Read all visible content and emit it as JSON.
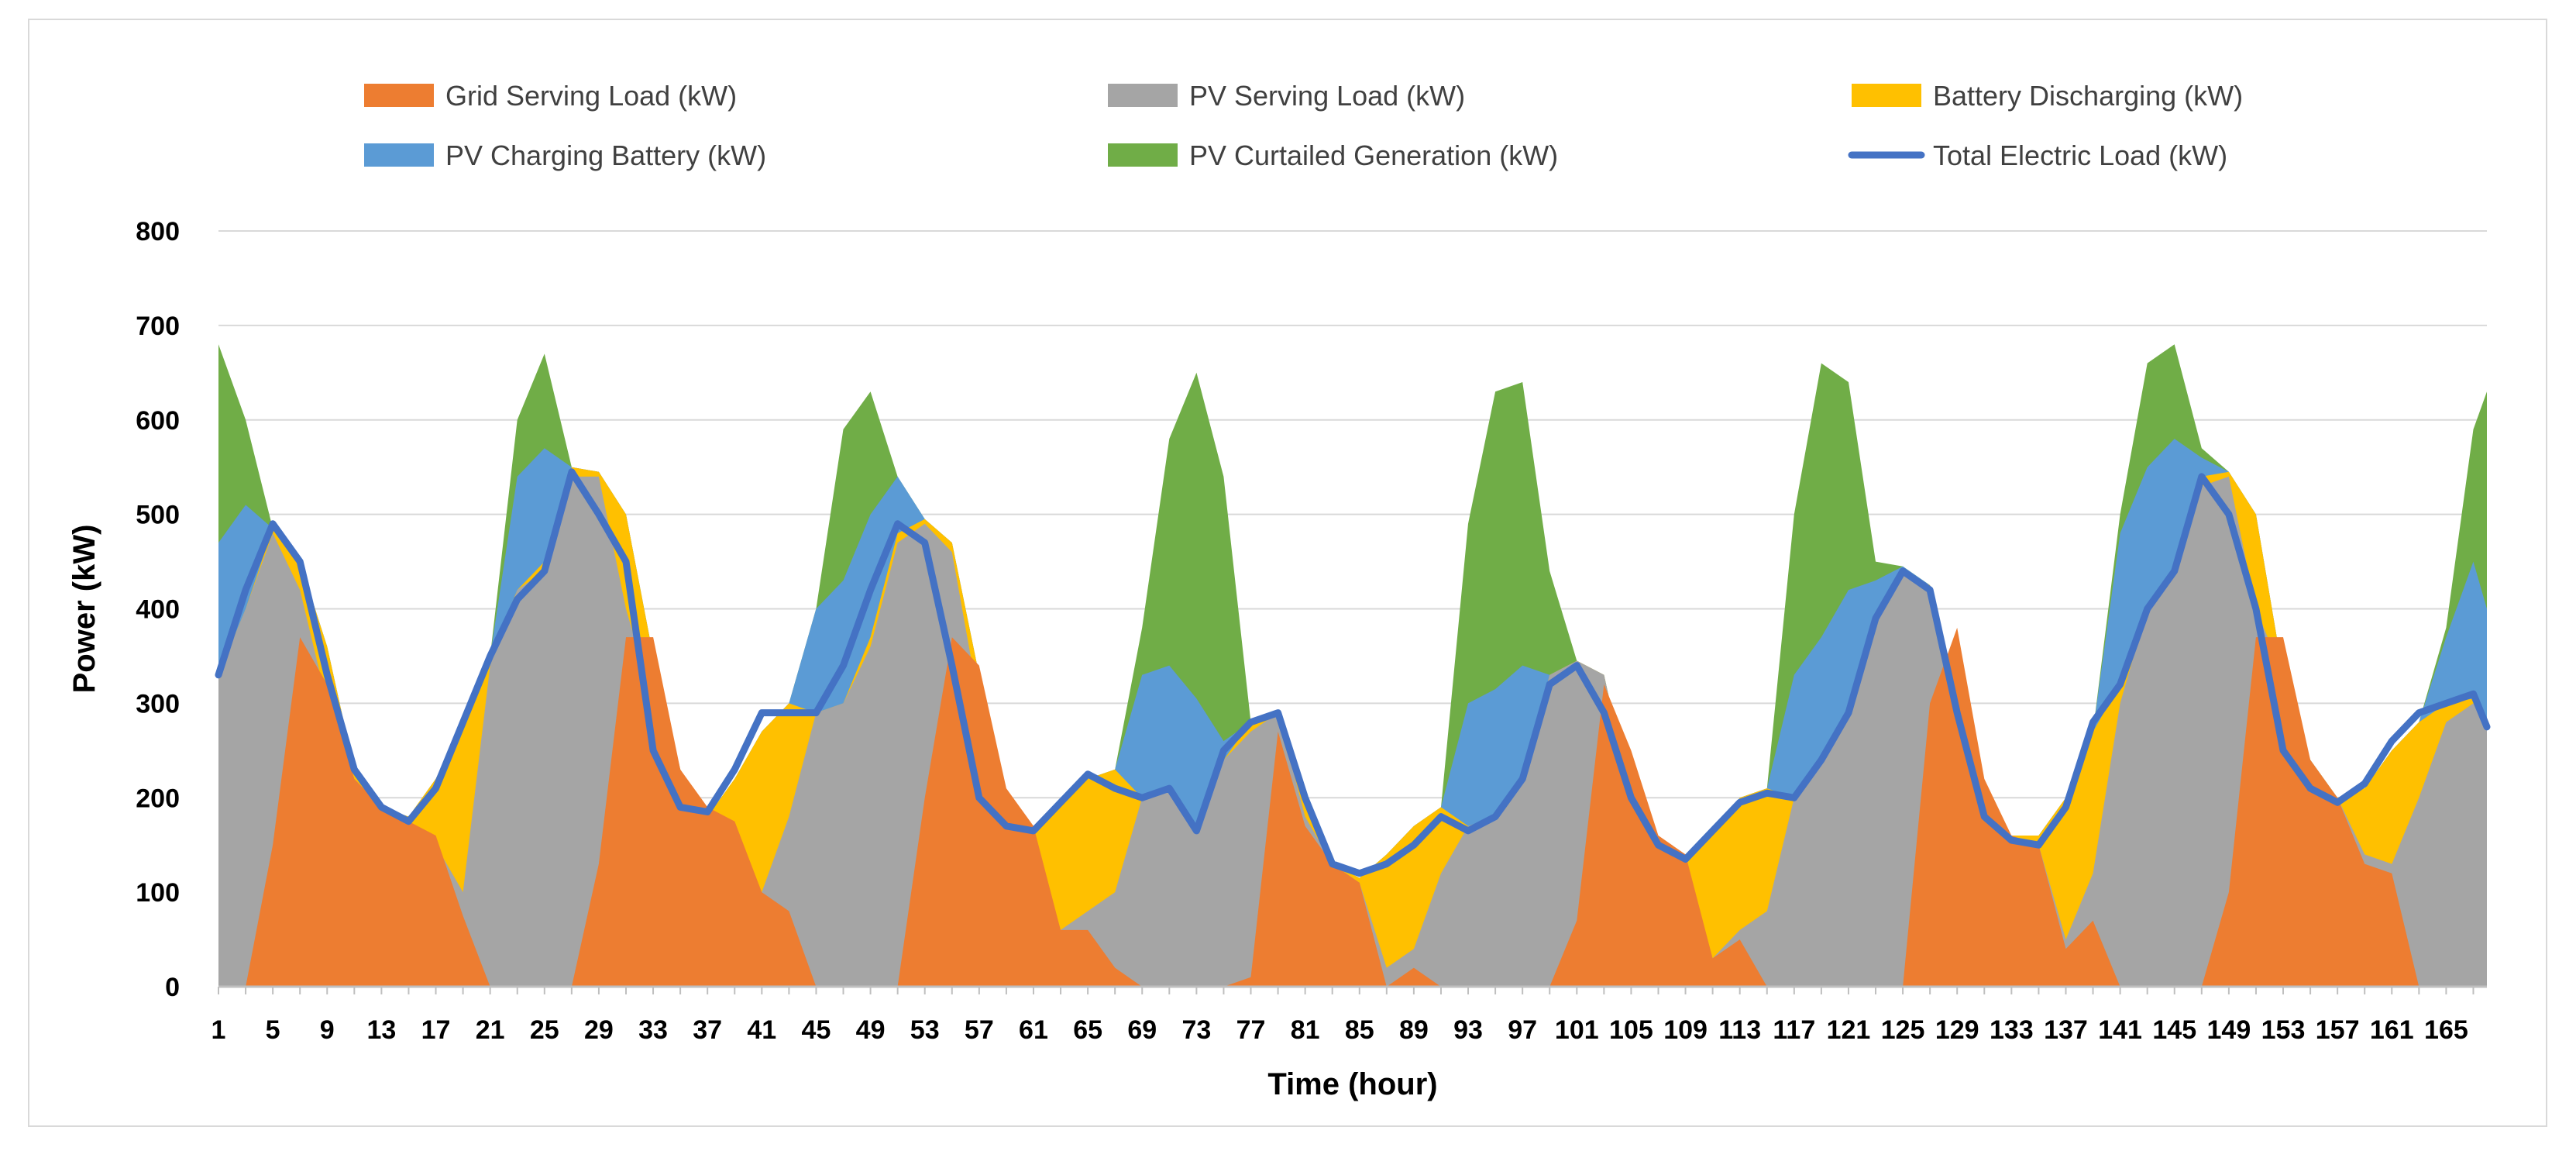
{
  "chart_data": {
    "type": "area",
    "xlabel": "Time (hour)",
    "ylabel": "Power (kW)",
    "ylim": [
      0,
      800
    ],
    "yticks": [
      0,
      100,
      200,
      300,
      400,
      500,
      600,
      700,
      800
    ],
    "xticks": [
      1,
      5,
      9,
      13,
      17,
      21,
      25,
      29,
      33,
      37,
      41,
      45,
      49,
      53,
      57,
      61,
      65,
      69,
      73,
      77,
      81,
      85,
      89,
      93,
      97,
      101,
      105,
      109,
      113,
      117,
      121,
      125,
      129,
      133,
      137,
      141,
      145,
      149,
      153,
      157,
      161,
      165
    ],
    "xlim": [
      1,
      168
    ],
    "grid": "horizontal",
    "legend_position": "top",
    "x_sample": [
      1,
      3,
      5,
      7,
      9,
      11,
      13,
      15,
      17,
      19,
      21,
      23,
      25,
      27,
      29,
      31,
      33,
      35,
      37,
      39,
      41,
      43,
      45,
      47,
      49,
      51,
      53,
      55,
      57,
      59,
      61,
      63,
      65,
      67,
      69,
      71,
      73,
      75,
      77,
      79,
      81,
      83,
      85,
      87,
      89,
      91,
      93,
      95,
      97,
      99,
      101,
      103,
      105,
      107,
      109,
      111,
      113,
      115,
      117,
      119,
      121,
      123,
      125,
      127,
      129,
      131,
      133,
      135,
      137,
      139,
      141,
      143,
      145,
      147,
      149,
      151,
      153,
      155,
      157,
      159,
      161,
      163,
      165,
      167,
      168
    ],
    "series": [
      {
        "name": "Grid Serving Load (kW)",
        "kind": "area",
        "color": "#ED7D31",
        "values": [
          0,
          0,
          150,
          370,
          320,
          220,
          190,
          175,
          160,
          75,
          0,
          0,
          0,
          0,
          130,
          370,
          370,
          230,
          190,
          175,
          100,
          80,
          0,
          0,
          0,
          0,
          200,
          370,
          340,
          210,
          170,
          60,
          60,
          20,
          0,
          0,
          0,
          0,
          10,
          270,
          170,
          130,
          110,
          0,
          20,
          0,
          0,
          0,
          0,
          0,
          70,
          320,
          250,
          160,
          140,
          30,
          50,
          0,
          0,
          0,
          0,
          0,
          0,
          300,
          380,
          220,
          160,
          150,
          40,
          70,
          0,
          0,
          0,
          0,
          100,
          370,
          370,
          240,
          200,
          130,
          120,
          0,
          0,
          0,
          0
        ]
      },
      {
        "name": "PV Serving Load (kW)",
        "kind": "area",
        "color": "#A5A5A5",
        "values": [
          330,
          400,
          480,
          420,
          300,
          220,
          190,
          175,
          150,
          100,
          340,
          420,
          440,
          540,
          540,
          400,
          300,
          230,
          180,
          150,
          100,
          180,
          290,
          300,
          360,
          470,
          490,
          460,
          300,
          190,
          160,
          60,
          80,
          100,
          200,
          210,
          170,
          240,
          270,
          290,
          180,
          130,
          110,
          20,
          40,
          120,
          170,
          180,
          220,
          330,
          345,
          330,
          200,
          150,
          130,
          30,
          60,
          80,
          200,
          240,
          290,
          390,
          440,
          420,
          290,
          190,
          160,
          150,
          50,
          120,
          300,
          400,
          440,
          530,
          540,
          400,
          330,
          240,
          200,
          140,
          130,
          200,
          280,
          300,
          275
        ]
      },
      {
        "name": "Battery Discharging (kW)",
        "kind": "area",
        "color": "#FFC000",
        "values": [
          330,
          400,
          485,
          450,
          360,
          230,
          190,
          180,
          220,
          280,
          350,
          420,
          450,
          550,
          545,
          500,
          350,
          230,
          180,
          220,
          270,
          300,
          290,
          300,
          370,
          480,
          495,
          470,
          330,
          190,
          160,
          190,
          220,
          230,
          200,
          210,
          170,
          240,
          280,
          290,
          200,
          130,
          115,
          140,
          170,
          190,
          170,
          180,
          220,
          330,
          345,
          330,
          200,
          150,
          130,
          160,
          200,
          210,
          200,
          240,
          290,
          390,
          440,
          425,
          290,
          190,
          160,
          160,
          200,
          270,
          320,
          400,
          440,
          540,
          545,
          500,
          330,
          240,
          200,
          210,
          250,
          280,
          300,
          305,
          275
        ]
      },
      {
        "name": "PV Charging Battery (kW)",
        "kind": "area",
        "color": "#5B9BD5",
        "values": [
          470,
          510,
          485,
          450,
          360,
          230,
          190,
          180,
          220,
          280,
          350,
          540,
          570,
          550,
          545,
          500,
          350,
          230,
          180,
          220,
          270,
          300,
          400,
          430,
          500,
          540,
          495,
          470,
          330,
          190,
          160,
          190,
          220,
          230,
          330,
          340,
          305,
          260,
          280,
          290,
          200,
          130,
          115,
          140,
          170,
          190,
          300,
          315,
          340,
          330,
          345,
          330,
          200,
          150,
          130,
          160,
          200,
          210,
          330,
          370,
          420,
          430,
          445,
          425,
          290,
          190,
          160,
          160,
          200,
          270,
          480,
          550,
          580,
          560,
          545,
          500,
          330,
          240,
          200,
          210,
          250,
          280,
          370,
          450,
          400
        ]
      },
      {
        "name": "PV Curtailed Generation (kW)",
        "kind": "area",
        "color": "#70AD47",
        "values": [
          680,
          600,
          485,
          450,
          360,
          230,
          190,
          180,
          220,
          280,
          350,
          600,
          670,
          550,
          545,
          500,
          350,
          230,
          180,
          220,
          270,
          300,
          400,
          590,
          630,
          540,
          495,
          470,
          330,
          190,
          160,
          190,
          220,
          230,
          380,
          580,
          650,
          540,
          280,
          290,
          200,
          130,
          115,
          140,
          170,
          190,
          490,
          630,
          640,
          440,
          345,
          330,
          200,
          150,
          130,
          160,
          200,
          210,
          500,
          660,
          640,
          450,
          445,
          425,
          290,
          190,
          160,
          160,
          200,
          270,
          500,
          660,
          680,
          570,
          545,
          500,
          330,
          240,
          200,
          210,
          250,
          280,
          380,
          590,
          630
        ]
      },
      {
        "name": "Total Electric Load (kW)",
        "kind": "line",
        "color": "#4472C4",
        "values": [
          330,
          420,
          490,
          450,
          330,
          230,
          190,
          175,
          210,
          280,
          350,
          410,
          440,
          545,
          500,
          450,
          250,
          190,
          185,
          230,
          290,
          290,
          290,
          340,
          420,
          490,
          470,
          340,
          200,
          170,
          165,
          195,
          225,
          210,
          200,
          210,
          165,
          250,
          280,
          290,
          200,
          130,
          120,
          130,
          150,
          180,
          165,
          180,
          220,
          320,
          340,
          290,
          200,
          150,
          135,
          165,
          195,
          205,
          200,
          240,
          290,
          390,
          440,
          420,
          290,
          180,
          155,
          150,
          190,
          280,
          320,
          400,
          440,
          540,
          500,
          400,
          250,
          210,
          195,
          215,
          260,
          290,
          300,
          310,
          275
        ]
      }
    ]
  }
}
